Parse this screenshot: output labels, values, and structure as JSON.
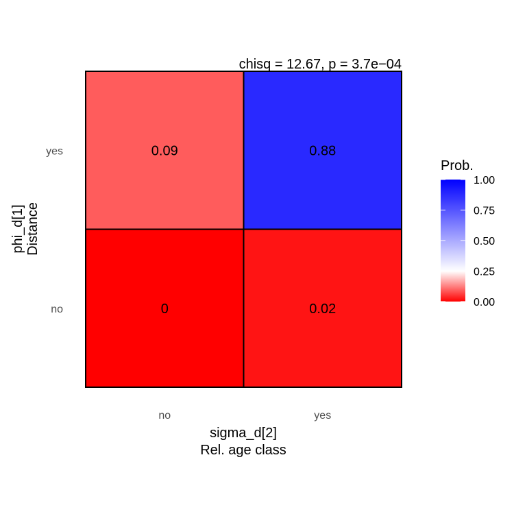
{
  "chart_data": {
    "type": "heatmap",
    "annotation": "chisq = 12.67, p = 3.7e−04",
    "x_categories": [
      "no",
      "yes"
    ],
    "y_categories": [
      "no",
      "yes"
    ],
    "xlabel_line1": "sigma_d[2]",
    "xlabel_line2": "Rel. age class",
    "ylabel_line1": "phi_d[1]",
    "ylabel_line2": "Distance",
    "cells": [
      {
        "x": "no",
        "y": "yes",
        "value": 0.09,
        "label": "0.09"
      },
      {
        "x": "yes",
        "y": "yes",
        "value": 0.88,
        "label": "0.88"
      },
      {
        "x": "no",
        "y": "no",
        "value": 0.0,
        "label": "0"
      },
      {
        "x": "yes",
        "y": "no",
        "value": 0.02,
        "label": "0.02"
      }
    ],
    "legend": {
      "title": "Prob.",
      "range": [
        0,
        1
      ],
      "ticks": [
        0.0,
        0.25,
        0.5,
        0.75,
        1.0
      ],
      "tick_labels": [
        "0.00",
        "0.25",
        "0.50",
        "0.75",
        "1.00"
      ]
    },
    "colors": {
      "low": "#ff0000",
      "mid": "#ffffff",
      "high": "#0000ff",
      "midpoint": 0.25,
      "grid": "#000000"
    }
  }
}
